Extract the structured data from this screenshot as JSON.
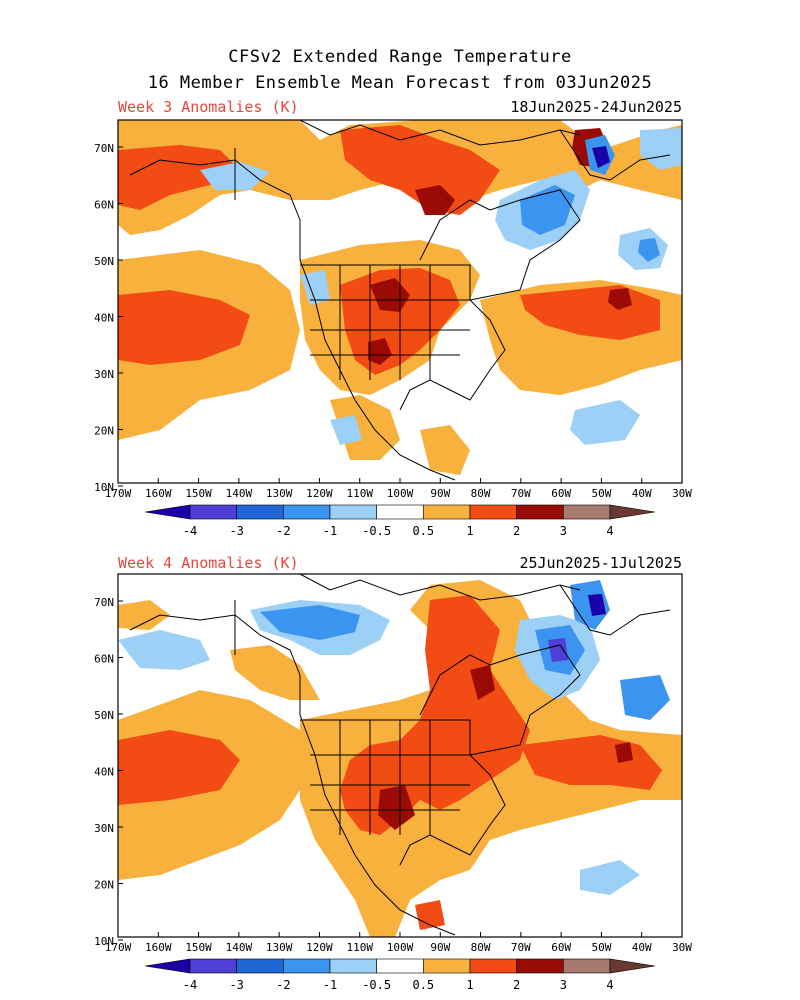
{
  "header": {
    "title_line1": "CFSv2 Extended Range Temperature",
    "title_line2": "16 Member Ensemble Mean Forecast from 03Jun2025"
  },
  "palette": {
    "label_red": "#e8473c",
    "bins": [
      {
        "label": "-4",
        "color": "#1a00a8"
      },
      {
        "label": "-3",
        "color": "#4f3fd6"
      },
      {
        "label": "-2",
        "color": "#1f66d8"
      },
      {
        "label": "-1",
        "color": "#3b94f0"
      },
      {
        "label": "-0.5",
        "color": "#9cd0f7"
      },
      {
        "label": "0.5",
        "color": "#ffffff"
      },
      {
        "label": "1",
        "color": "#f8b13d"
      },
      {
        "label": "2",
        "color": "#f24b14"
      },
      {
        "label": "3",
        "color": "#9b0b06"
      },
      {
        "label": "4",
        "color": "#a67a6f"
      },
      {
        "label": "",
        "color": "#6a3a30"
      }
    ]
  },
  "axes": {
    "lat_labels": [
      "70N",
      "60N",
      "50N",
      "40N",
      "30N",
      "20N",
      "10N"
    ],
    "lon_labels": [
      "170W",
      "160W",
      "150W",
      "140W",
      "130W",
      "120W",
      "110W",
      "100W",
      "90W",
      "80W",
      "70W",
      "60W",
      "50W",
      "40W",
      "30W"
    ]
  },
  "colorbar": {
    "tick_labels": [
      "-4",
      "-3",
      "-2",
      "-1",
      "-0.5",
      "0.5",
      "1",
      "2",
      "3",
      "4"
    ]
  },
  "panels": [
    {
      "id": "week3",
      "label": "Week 3 Anomalies (K)",
      "date_range": "18Jun2025-24Jun2025"
    },
    {
      "id": "week4",
      "label": "Week 4 Anomalies (K)",
      "date_range": "25Jun2025-1Jul2025"
    }
  ]
}
